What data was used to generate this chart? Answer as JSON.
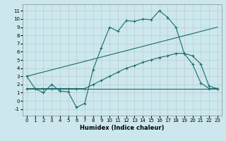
{
  "title": "",
  "xlabel": "Humidex (Indice chaleur)",
  "background_color": "#cce8ee",
  "grid_color": "#bbcccc",
  "line_color": "#1a6b6b",
  "xlim": [
    -0.5,
    23.5
  ],
  "ylim": [
    -1.8,
    11.8
  ],
  "xticks": [
    0,
    1,
    2,
    3,
    4,
    5,
    6,
    7,
    8,
    9,
    10,
    11,
    12,
    13,
    14,
    15,
    16,
    17,
    18,
    19,
    20,
    21,
    22,
    23
  ],
  "yticks": [
    -1,
    0,
    1,
    2,
    3,
    4,
    5,
    6,
    7,
    8,
    9,
    10,
    11
  ],
  "series1_x": [
    0,
    1,
    2,
    3,
    4,
    5,
    6,
    7,
    8,
    9,
    10,
    11,
    12,
    13,
    14,
    15,
    16,
    17,
    18,
    19,
    20,
    21,
    22,
    23
  ],
  "series1_y": [
    3.0,
    1.5,
    1.0,
    2.0,
    1.2,
    1.1,
    -0.8,
    -0.3,
    3.8,
    6.5,
    9.0,
    8.5,
    9.8,
    9.7,
    10.0,
    9.9,
    11.0,
    10.2,
    9.0,
    5.8,
    4.5,
    2.2,
    1.5,
    1.5
  ],
  "series2_x": [
    0,
    23
  ],
  "series2_y": [
    1.5,
    1.5
  ],
  "series3_x": [
    0,
    23
  ],
  "series3_y": [
    3.0,
    9.0
  ],
  "series4_x": [
    0,
    1,
    2,
    3,
    4,
    5,
    6,
    7,
    8,
    9,
    10,
    11,
    12,
    13,
    14,
    15,
    16,
    17,
    18,
    19,
    20,
    21,
    22,
    23
  ],
  "series4_y": [
    1.5,
    1.5,
    1.5,
    1.5,
    1.5,
    1.5,
    1.5,
    1.5,
    2.0,
    2.5,
    3.0,
    3.5,
    4.0,
    4.3,
    4.7,
    5.0,
    5.3,
    5.5,
    5.8,
    5.8,
    5.5,
    4.5,
    1.8,
    1.5
  ],
  "xlabel_fontsize": 6,
  "tick_fontsize": 5
}
